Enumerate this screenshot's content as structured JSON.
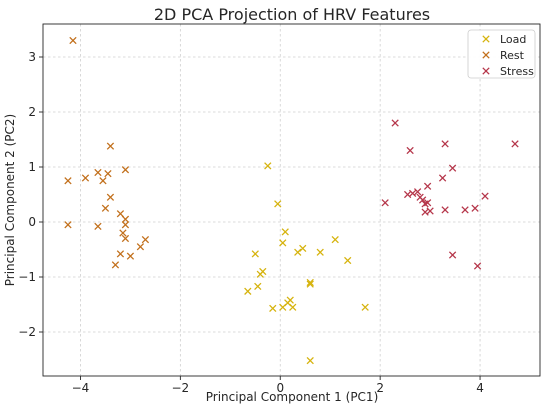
{
  "chart_data": {
    "type": "scatter",
    "title": "2D PCA Projection of HRV Features",
    "xlabel": "Principal Component 1 (PC1)",
    "ylabel": "Principal Component 2 (PC2)",
    "xlim": [
      -4.75,
      5.2
    ],
    "ylim": [
      -2.8,
      3.6
    ],
    "xticks": [
      -4,
      -2,
      0,
      2,
      4
    ],
    "yticks": [
      -2,
      -1,
      0,
      1,
      2,
      3
    ],
    "grid": true,
    "legend_position": "top-right",
    "marker": "x",
    "series": [
      {
        "name": "Load",
        "color": "#d6b30d",
        "points": [
          [
            -0.25,
            1.02
          ],
          [
            -0.05,
            0.33
          ],
          [
            0.1,
            -0.18
          ],
          [
            0.05,
            -0.38
          ],
          [
            0.35,
            -0.55
          ],
          [
            0.45,
            -0.48
          ],
          [
            0.8,
            -0.55
          ],
          [
            1.1,
            -0.32
          ],
          [
            1.35,
            -0.7
          ],
          [
            -0.5,
            -0.58
          ],
          [
            -0.4,
            -0.95
          ],
          [
            -0.35,
            -0.9
          ],
          [
            -0.45,
            -1.17
          ],
          [
            -0.65,
            -1.26
          ],
          [
            0.6,
            -1.1
          ],
          [
            0.6,
            -1.13
          ],
          [
            0.2,
            -1.42
          ],
          [
            0.15,
            -1.47
          ],
          [
            0.05,
            -1.55
          ],
          [
            0.25,
            -1.55
          ],
          [
            -0.15,
            -1.57
          ],
          [
            1.7,
            -1.55
          ],
          [
            0.6,
            -2.52
          ]
        ]
      },
      {
        "name": "Rest",
        "color": "#c2701c",
        "points": [
          [
            -4.15,
            3.3
          ],
          [
            -3.4,
            1.38
          ],
          [
            -3.65,
            0.9
          ],
          [
            -3.45,
            0.88
          ],
          [
            -3.55,
            0.75
          ],
          [
            -3.1,
            0.95
          ],
          [
            -3.9,
            0.8
          ],
          [
            -4.25,
            0.75
          ],
          [
            -3.4,
            0.45
          ],
          [
            -3.5,
            0.25
          ],
          [
            -3.2,
            0.15
          ],
          [
            -3.1,
            0.05
          ],
          [
            -3.1,
            -0.05
          ],
          [
            -3.65,
            -0.08
          ],
          [
            -4.25,
            -0.05
          ],
          [
            -3.15,
            -0.2
          ],
          [
            -3.1,
            -0.3
          ],
          [
            -2.7,
            -0.32
          ],
          [
            -2.8,
            -0.45
          ],
          [
            -3.2,
            -0.58
          ],
          [
            -3.0,
            -0.62
          ],
          [
            -3.3,
            -0.78
          ]
        ]
      },
      {
        "name": "Stress",
        "color": "#b5364a",
        "points": [
          [
            2.3,
            1.8
          ],
          [
            2.6,
            1.3
          ],
          [
            3.3,
            1.42
          ],
          [
            4.7,
            1.42
          ],
          [
            3.45,
            0.98
          ],
          [
            3.25,
            0.8
          ],
          [
            2.95,
            0.65
          ],
          [
            2.75,
            0.55
          ],
          [
            2.65,
            0.52
          ],
          [
            2.55,
            0.5
          ],
          [
            2.8,
            0.45
          ],
          [
            2.85,
            0.4
          ],
          [
            2.95,
            0.35
          ],
          [
            2.9,
            0.33
          ],
          [
            2.1,
            0.35
          ],
          [
            4.1,
            0.47
          ],
          [
            3.3,
            0.22
          ],
          [
            3.0,
            0.2
          ],
          [
            2.9,
            0.18
          ],
          [
            3.7,
            0.22
          ],
          [
            3.9,
            0.25
          ],
          [
            3.45,
            -0.6
          ],
          [
            3.95,
            -0.8
          ]
        ]
      }
    ]
  }
}
